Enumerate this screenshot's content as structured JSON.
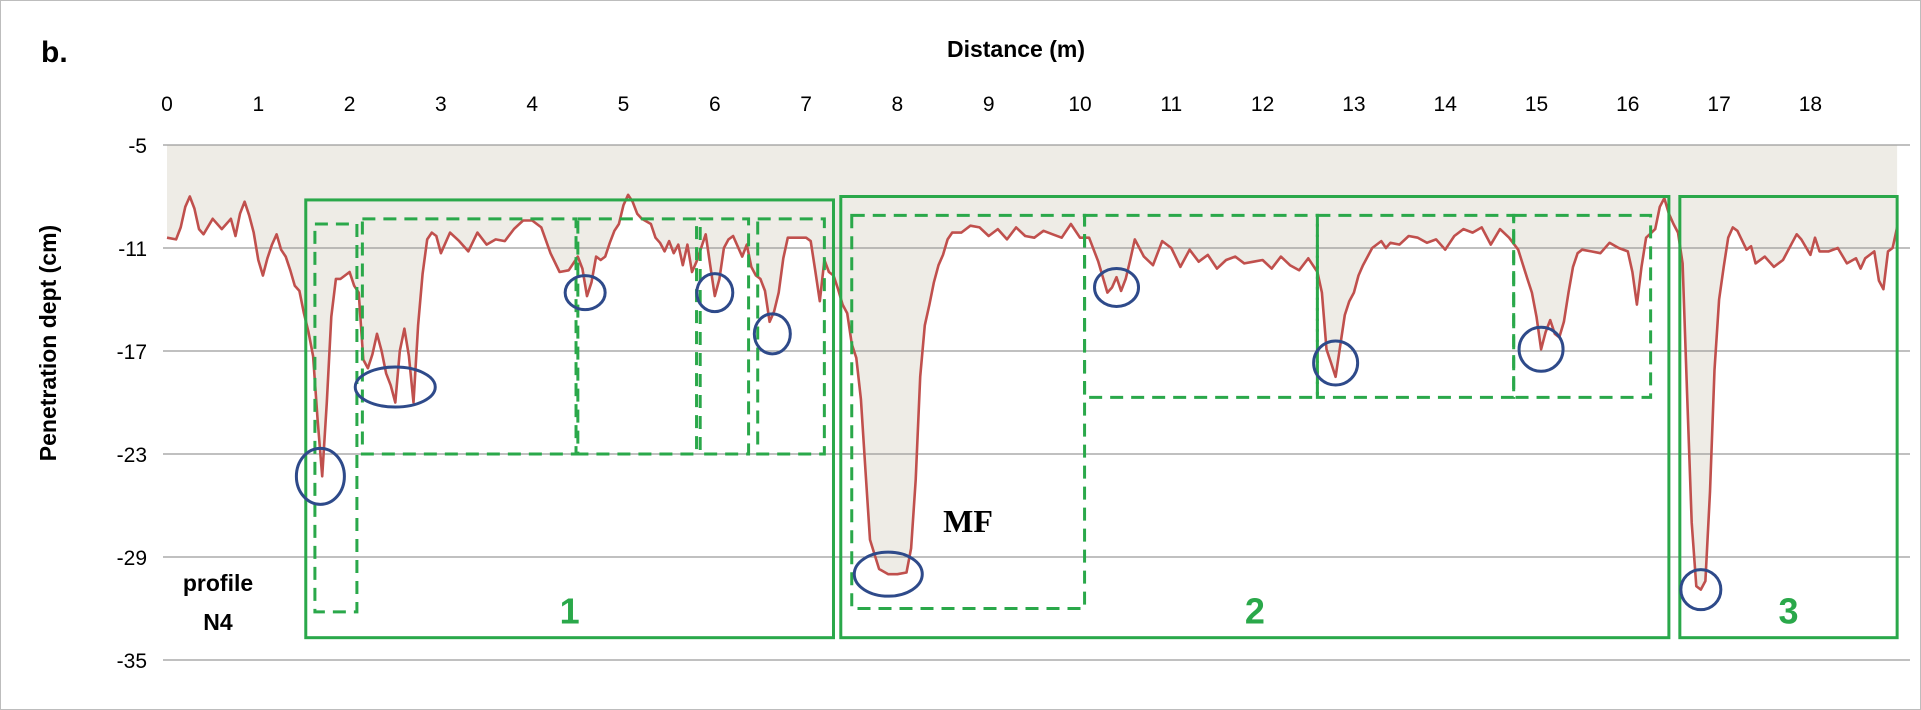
{
  "panel_label": "b.",
  "annotations": {
    "profile_line1": "profile",
    "profile_line2": "N4",
    "mf": "MF",
    "zones": [
      {
        "label": "1",
        "x_start": 1.52,
        "x_end": 7.3,
        "y_top": -8.2,
        "y_bottom": -33.7
      },
      {
        "label": "2",
        "x_start": 7.38,
        "x_end": 16.45,
        "y_top": -8.0,
        "y_bottom": -33.7
      },
      {
        "label": "3",
        "x_start": 16.57,
        "x_end": 18.95,
        "y_top": -8.0,
        "y_bottom": -33.7
      }
    ],
    "dashed_boxes": [
      {
        "x_start": 1.62,
        "x_end": 2.08,
        "y_top": -9.6,
        "y_bottom": -32.2
      },
      {
        "x_start": 2.14,
        "x_end": 4.48,
        "y_top": -9.3,
        "y_bottom": -23.0
      },
      {
        "x_start": 4.5,
        "x_end": 5.8,
        "y_top": -9.3,
        "y_bottom": -23.0
      },
      {
        "x_start": 5.84,
        "x_end": 6.37,
        "y_top": -9.3,
        "y_bottom": -23.0
      },
      {
        "x_start": 6.47,
        "x_end": 7.2,
        "y_top": -9.3,
        "y_bottom": -23.0
      },
      {
        "x_start": 7.5,
        "x_end": 10.05,
        "y_top": -9.1,
        "y_bottom": -32.0
      },
      {
        "x_start": 10.05,
        "x_end": 12.6,
        "y_top": -9.1,
        "y_bottom": -19.7
      },
      {
        "x_start": 12.6,
        "x_end": 14.75,
        "y_top": -9.1,
        "y_bottom": -19.7
      },
      {
        "x_start": 14.75,
        "x_end": 16.25,
        "y_top": -9.1,
        "y_bottom": -19.7
      }
    ],
    "circles": [
      {
        "x": 1.68,
        "y": -24.3
      },
      {
        "x": 2.5,
        "y": -19.1
      },
      {
        "x": 4.58,
        "y": -13.6
      },
      {
        "x": 6.0,
        "y": -13.6
      },
      {
        "x": 6.63,
        "y": -16.0
      },
      {
        "x": 7.9,
        "y": -30.0
      },
      {
        "x": 10.4,
        "y": -13.3
      },
      {
        "x": 12.8,
        "y": -17.7
      },
      {
        "x": 15.05,
        "y": -16.9
      },
      {
        "x": 16.8,
        "y": -30.9
      }
    ]
  },
  "chart_data": {
    "type": "area",
    "title": "",
    "xlabel": "Distance (m)",
    "ylabel": "Penetration dept (cm)",
    "xlim": [
      0,
      19
    ],
    "ylim": [
      -35,
      -5
    ],
    "x_ticks": [
      "0",
      "1",
      "2",
      "3",
      "4",
      "5",
      "6",
      "7",
      "8",
      "9",
      "10",
      "11",
      "12",
      "13",
      "14",
      "15",
      "16",
      "17",
      "18"
    ],
    "y_ticks": [
      "-5",
      "-11",
      "-17",
      "-23",
      "-29",
      "-35"
    ],
    "grid": "horizontal",
    "line_color": "#c0504d",
    "fill_color": "#d9d4c7",
    "series": [
      {
        "values": [
          [
            0.0,
            -10.4
          ],
          [
            0.1,
            -10.5
          ],
          [
            0.15,
            -9.8
          ],
          [
            0.2,
            -8.6
          ],
          [
            0.25,
            -8.0
          ],
          [
            0.3,
            -8.7
          ],
          [
            0.35,
            -9.9
          ],
          [
            0.4,
            -10.2
          ],
          [
            0.5,
            -9.3
          ],
          [
            0.6,
            -9.9
          ],
          [
            0.7,
            -9.3
          ],
          [
            0.75,
            -10.3
          ],
          [
            0.8,
            -9.0
          ],
          [
            0.85,
            -8.3
          ],
          [
            0.9,
            -9.1
          ],
          [
            0.95,
            -10.1
          ],
          [
            1.0,
            -11.7
          ],
          [
            1.05,
            -12.6
          ],
          [
            1.1,
            -11.6
          ],
          [
            1.15,
            -10.8
          ],
          [
            1.2,
            -10.2
          ],
          [
            1.25,
            -11.1
          ],
          [
            1.3,
            -11.5
          ],
          [
            1.35,
            -12.3
          ],
          [
            1.4,
            -13.2
          ],
          [
            1.45,
            -13.5
          ],
          [
            1.5,
            -14.8
          ],
          [
            1.55,
            -15.9
          ],
          [
            1.6,
            -17.3
          ],
          [
            1.65,
            -21.0
          ],
          [
            1.7,
            -24.3
          ],
          [
            1.75,
            -20.0
          ],
          [
            1.8,
            -15.0
          ],
          [
            1.85,
            -12.8
          ],
          [
            1.9,
            -12.8
          ],
          [
            1.95,
            -12.6
          ],
          [
            2.0,
            -12.4
          ],
          [
            2.05,
            -13.2
          ],
          [
            2.1,
            -13.6
          ],
          [
            2.15,
            -17.5
          ],
          [
            2.2,
            -18.0
          ],
          [
            2.25,
            -17.2
          ],
          [
            2.3,
            -16.0
          ],
          [
            2.35,
            -17.0
          ],
          [
            2.4,
            -18.3
          ],
          [
            2.45,
            -19.0
          ],
          [
            2.5,
            -20.0
          ],
          [
            2.55,
            -17.0
          ],
          [
            2.6,
            -15.7
          ],
          [
            2.65,
            -17.3
          ],
          [
            2.7,
            -20.0
          ],
          [
            2.75,
            -15.5
          ],
          [
            2.8,
            -12.5
          ],
          [
            2.85,
            -10.5
          ],
          [
            2.9,
            -10.1
          ],
          [
            2.95,
            -10.3
          ],
          [
            3.0,
            -11.3
          ],
          [
            3.1,
            -10.1
          ],
          [
            3.2,
            -10.6
          ],
          [
            3.3,
            -11.2
          ],
          [
            3.4,
            -10.1
          ],
          [
            3.5,
            -10.8
          ],
          [
            3.6,
            -10.5
          ],
          [
            3.7,
            -10.6
          ],
          [
            3.8,
            -9.9
          ],
          [
            3.9,
            -9.4
          ],
          [
            4.0,
            -9.4
          ],
          [
            4.1,
            -9.8
          ],
          [
            4.2,
            -11.3
          ],
          [
            4.3,
            -12.4
          ],
          [
            4.4,
            -12.3
          ],
          [
            4.5,
            -11.5
          ],
          [
            4.55,
            -12.2
          ],
          [
            4.6,
            -13.8
          ],
          [
            4.65,
            -13.0
          ],
          [
            4.7,
            -11.5
          ],
          [
            4.75,
            -11.7
          ],
          [
            4.8,
            -11.5
          ],
          [
            4.85,
            -10.7
          ],
          [
            4.9,
            -10.0
          ],
          [
            4.95,
            -9.6
          ],
          [
            5.0,
            -8.5
          ],
          [
            5.05,
            -7.9
          ],
          [
            5.1,
            -8.3
          ],
          [
            5.15,
            -9.0
          ],
          [
            5.2,
            -9.3
          ],
          [
            5.3,
            -9.6
          ],
          [
            5.35,
            -10.4
          ],
          [
            5.4,
            -10.7
          ],
          [
            5.45,
            -11.2
          ],
          [
            5.5,
            -10.6
          ],
          [
            5.55,
            -11.3
          ],
          [
            5.6,
            -10.8
          ],
          [
            5.65,
            -12.0
          ],
          [
            5.7,
            -10.8
          ],
          [
            5.75,
            -12.4
          ],
          [
            5.8,
            -11.8
          ],
          [
            5.85,
            -11.0
          ],
          [
            5.9,
            -10.2
          ],
          [
            5.95,
            -12.0
          ],
          [
            6.0,
            -13.8
          ],
          [
            6.05,
            -12.8
          ],
          [
            6.1,
            -11.0
          ],
          [
            6.15,
            -10.5
          ],
          [
            6.2,
            -10.3
          ],
          [
            6.3,
            -11.5
          ],
          [
            6.35,
            -10.8
          ],
          [
            6.4,
            -12.1
          ],
          [
            6.45,
            -12.6
          ],
          [
            6.5,
            -12.8
          ],
          [
            6.55,
            -13.5
          ],
          [
            6.6,
            -15.3
          ],
          [
            6.65,
            -14.7
          ],
          [
            6.7,
            -13.6
          ],
          [
            6.75,
            -11.6
          ],
          [
            6.8,
            -10.4
          ],
          [
            6.9,
            -10.4
          ],
          [
            7.0,
            -10.4
          ],
          [
            7.05,
            -10.6
          ],
          [
            7.1,
            -12.3
          ],
          [
            7.15,
            -14.1
          ],
          [
            7.2,
            -11.7
          ],
          [
            7.25,
            -12.4
          ],
          [
            7.3,
            -12.6
          ],
          [
            7.35,
            -13.4
          ],
          [
            7.4,
            -14.3
          ],
          [
            7.45,
            -14.8
          ],
          [
            7.5,
            -16.6
          ],
          [
            7.55,
            -17.4
          ],
          [
            7.6,
            -19.8
          ],
          [
            7.65,
            -23.9
          ],
          [
            7.7,
            -28.0
          ],
          [
            7.8,
            -29.7
          ],
          [
            7.9,
            -30.0
          ],
          [
            8.0,
            -30.0
          ],
          [
            8.1,
            -29.9
          ],
          [
            8.15,
            -28.5
          ],
          [
            8.2,
            -24.5
          ],
          [
            8.25,
            -18.5
          ],
          [
            8.3,
            -15.5
          ],
          [
            8.35,
            -14.3
          ],
          [
            8.4,
            -13.0
          ],
          [
            8.45,
            -12.0
          ],
          [
            8.5,
            -11.4
          ],
          [
            8.55,
            -10.5
          ],
          [
            8.6,
            -10.1
          ],
          [
            8.7,
            -10.1
          ],
          [
            8.8,
            -9.7
          ],
          [
            8.9,
            -9.8
          ],
          [
            9.0,
            -10.3
          ],
          [
            9.1,
            -9.9
          ],
          [
            9.2,
            -10.5
          ],
          [
            9.3,
            -9.8
          ],
          [
            9.4,
            -10.3
          ],
          [
            9.5,
            -10.4
          ],
          [
            9.6,
            -10.0
          ],
          [
            9.7,
            -10.2
          ],
          [
            9.8,
            -10.4
          ],
          [
            9.9,
            -9.6
          ],
          [
            10.0,
            -10.4
          ],
          [
            10.1,
            -10.4
          ],
          [
            10.2,
            -11.8
          ],
          [
            10.3,
            -13.6
          ],
          [
            10.35,
            -13.3
          ],
          [
            10.4,
            -12.7
          ],
          [
            10.45,
            -13.5
          ],
          [
            10.5,
            -12.8
          ],
          [
            10.55,
            -11.7
          ],
          [
            10.6,
            -10.5
          ],
          [
            10.7,
            -11.5
          ],
          [
            10.8,
            -12.0
          ],
          [
            10.9,
            -10.6
          ],
          [
            11.0,
            -11.0
          ],
          [
            11.1,
            -12.1
          ],
          [
            11.2,
            -11.1
          ],
          [
            11.3,
            -11.8
          ],
          [
            11.4,
            -11.4
          ],
          [
            11.5,
            -12.2
          ],
          [
            11.6,
            -11.7
          ],
          [
            11.7,
            -11.5
          ],
          [
            11.8,
            -11.9
          ],
          [
            11.9,
            -11.8
          ],
          [
            12.0,
            -11.7
          ],
          [
            12.1,
            -12.2
          ],
          [
            12.2,
            -11.5
          ],
          [
            12.3,
            -12.0
          ],
          [
            12.4,
            -12.3
          ],
          [
            12.5,
            -11.6
          ],
          [
            12.6,
            -12.4
          ],
          [
            12.65,
            -13.6
          ],
          [
            12.7,
            -16.9
          ],
          [
            12.75,
            -17.7
          ],
          [
            12.8,
            -18.5
          ],
          [
            12.85,
            -16.7
          ],
          [
            12.9,
            -14.9
          ],
          [
            12.95,
            -14.1
          ],
          [
            13.0,
            -13.6
          ],
          [
            13.05,
            -12.6
          ],
          [
            13.1,
            -12.0
          ],
          [
            13.2,
            -11.0
          ],
          [
            13.3,
            -10.6
          ],
          [
            13.35,
            -11.0
          ],
          [
            13.4,
            -10.7
          ],
          [
            13.5,
            -10.8
          ],
          [
            13.6,
            -10.3
          ],
          [
            13.7,
            -10.4
          ],
          [
            13.8,
            -10.7
          ],
          [
            13.9,
            -10.5
          ],
          [
            14.0,
            -11.1
          ],
          [
            14.1,
            -10.3
          ],
          [
            14.2,
            -9.9
          ],
          [
            14.3,
            -10.1
          ],
          [
            14.4,
            -9.8
          ],
          [
            14.5,
            -10.8
          ],
          [
            14.6,
            -9.9
          ],
          [
            14.7,
            -10.4
          ],
          [
            14.8,
            -11.1
          ],
          [
            14.9,
            -12.8
          ],
          [
            14.95,
            -13.6
          ],
          [
            15.0,
            -15.0
          ],
          [
            15.05,
            -16.9
          ],
          [
            15.1,
            -15.9
          ],
          [
            15.15,
            -15.2
          ],
          [
            15.2,
            -16.0
          ],
          [
            15.25,
            -16.2
          ],
          [
            15.3,
            -15.3
          ],
          [
            15.35,
            -13.6
          ],
          [
            15.4,
            -12.1
          ],
          [
            15.45,
            -11.3
          ],
          [
            15.5,
            -11.1
          ],
          [
            15.6,
            -11.2
          ],
          [
            15.7,
            -11.3
          ],
          [
            15.8,
            -10.7
          ],
          [
            15.9,
            -11.0
          ],
          [
            16.0,
            -11.2
          ],
          [
            16.05,
            -12.4
          ],
          [
            16.1,
            -14.3
          ],
          [
            16.15,
            -12.1
          ],
          [
            16.2,
            -10.4
          ],
          [
            16.3,
            -9.9
          ],
          [
            16.35,
            -8.6
          ],
          [
            16.4,
            -8.1
          ],
          [
            16.45,
            -9.0
          ],
          [
            16.5,
            -9.6
          ],
          [
            16.55,
            -10.1
          ],
          [
            16.6,
            -11.9
          ],
          [
            16.65,
            -19.5
          ],
          [
            16.7,
            -27.0
          ],
          [
            16.75,
            -30.7
          ],
          [
            16.8,
            -30.9
          ],
          [
            16.85,
            -30.4
          ],
          [
            16.9,
            -25.2
          ],
          [
            16.95,
            -18.1
          ],
          [
            17.0,
            -14.0
          ],
          [
            17.05,
            -12.1
          ],
          [
            17.1,
            -10.4
          ],
          [
            17.15,
            -9.8
          ],
          [
            17.2,
            -10.0
          ],
          [
            17.3,
            -11.1
          ],
          [
            17.35,
            -10.9
          ],
          [
            17.4,
            -11.9
          ],
          [
            17.5,
            -11.5
          ],
          [
            17.6,
            -12.1
          ],
          [
            17.7,
            -11.7
          ],
          [
            17.8,
            -10.7
          ],
          [
            17.85,
            -10.2
          ],
          [
            17.9,
            -10.5
          ],
          [
            18.0,
            -11.4
          ],
          [
            18.05,
            -10.4
          ],
          [
            18.1,
            -11.2
          ],
          [
            18.2,
            -11.2
          ],
          [
            18.3,
            -11.0
          ],
          [
            18.4,
            -11.9
          ],
          [
            18.5,
            -11.6
          ],
          [
            18.55,
            -12.2
          ],
          [
            18.6,
            -11.6
          ],
          [
            18.7,
            -11.2
          ],
          [
            18.75,
            -12.9
          ],
          [
            18.8,
            -13.4
          ],
          [
            18.85,
            -11.2
          ],
          [
            18.9,
            -11.0
          ],
          [
            18.95,
            -9.8
          ]
        ]
      }
    ]
  }
}
